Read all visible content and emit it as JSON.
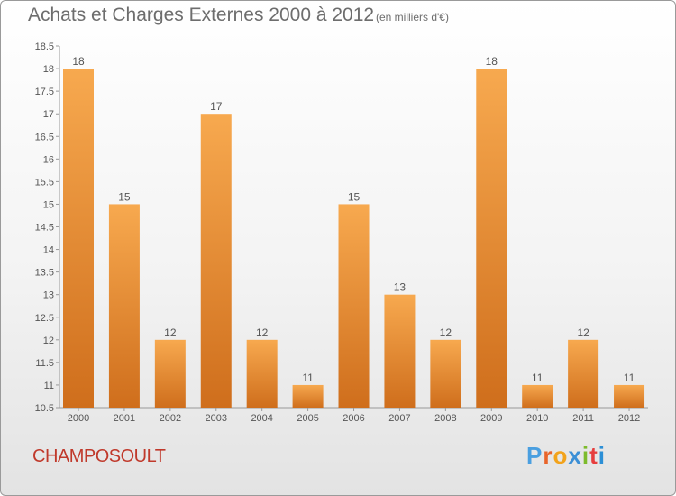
{
  "header": {
    "title": "Achats et Charges Externes 2000 à 2012",
    "unit": "(en milliers d'€)"
  },
  "footer": {
    "commune": "CHAMPOSOULT",
    "brand": "Proxiti"
  },
  "colors": {
    "bar_light": "#f7a94f",
    "bar_dark": "#cf6e1c",
    "commune": "#c0392b",
    "brand_letters": [
      "#4a9fe0",
      "#e8642a",
      "#f2a31b",
      "#3b8fd6",
      "#7dbb2c",
      "#e63e3e",
      "#2c8fd6"
    ]
  },
  "chart_data": {
    "type": "bar",
    "categories": [
      "2000",
      "2001",
      "2002",
      "2003",
      "2004",
      "2005",
      "2006",
      "2007",
      "2008",
      "2009",
      "2010",
      "2011",
      "2012"
    ],
    "values": [
      18,
      15,
      12,
      17,
      12,
      11,
      15,
      13,
      12,
      18,
      11,
      12,
      11
    ],
    "title": "Achats et Charges Externes 2000 à 2012",
    "ylim": [
      10.5,
      18.5
    ],
    "yticks": [
      "10.5",
      "11",
      "11.5",
      "12",
      "12.5",
      "13",
      "13.5",
      "14",
      "14.5",
      "15",
      "15.5",
      "16",
      "16.5",
      "17",
      "17.5",
      "18",
      "18.5"
    ],
    "grid": false
  }
}
